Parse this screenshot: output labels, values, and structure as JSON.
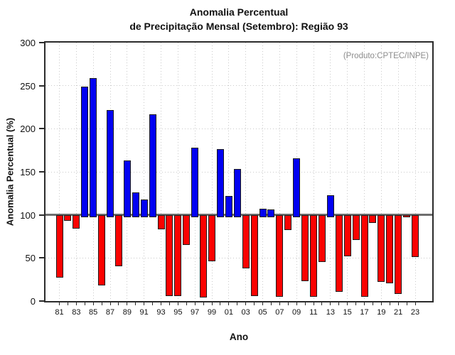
{
  "figure": {
    "title_line1": "Anomalia Percentual",
    "title_line2": "de Precipitação Mensal (Setembro): Região 93",
    "annotation": "(Produto:CPTEC/INPE)"
  },
  "axes": {
    "y_label": "Anomalia Percentual (%)",
    "x_label": "Ano",
    "y_ticks": [
      0,
      50,
      100,
      150,
      200,
      250,
      300
    ],
    "h_gridlines": [
      50,
      150,
      200,
      250
    ],
    "x_tick_labels": [
      "81",
      "83",
      "85",
      "87",
      "89",
      "91",
      "93",
      "95",
      "97",
      "99",
      "01",
      "03",
      "05",
      "07",
      "09",
      "11",
      "13",
      "15",
      "17",
      "19",
      "21",
      "23"
    ]
  },
  "colors": {
    "bar_above": "#0202f2",
    "bar_below": "#fb0200",
    "bar_border": "#1a1a1a",
    "baseline": "#6e6e6e",
    "grid": "#c9c9c9",
    "frame": "#2b2b2b",
    "tick": "#2b2b2b",
    "annotation_text": "#8c8c8c"
  },
  "chart_data": {
    "type": "bar",
    "title": "Anomalia Percentual de Precipitação Mensal (Setembro): Região 93",
    "xlabel": "Ano",
    "ylabel": "Anomalia Percentual (%)",
    "ylim": [
      0,
      300
    ],
    "baseline": 100,
    "grid": "dotted",
    "legend": "none",
    "color_rule": "blue if value >= 100, red if value < 100",
    "categories": [
      "81",
      "82",
      "83",
      "84",
      "85",
      "86",
      "87",
      "88",
      "89",
      "90",
      "91",
      "92",
      "93",
      "94",
      "95",
      "96",
      "97",
      "98",
      "99",
      "00",
      "01",
      "02",
      "03",
      "04",
      "05",
      "06",
      "07",
      "08",
      "09",
      "10",
      "11",
      "12",
      "13",
      "14",
      "15",
      "16",
      "17",
      "18",
      "19",
      "20",
      "21",
      "22",
      "23"
    ],
    "values": [
      27,
      93,
      84,
      249,
      259,
      18,
      222,
      40,
      163,
      126,
      118,
      217,
      83,
      6,
      6,
      65,
      178,
      4,
      46,
      176,
      122,
      153,
      38,
      6,
      107,
      106,
      5,
      82,
      166,
      23,
      5,
      45,
      123,
      11,
      52,
      71,
      5,
      91,
      22,
      21,
      8,
      97,
      51
    ]
  }
}
